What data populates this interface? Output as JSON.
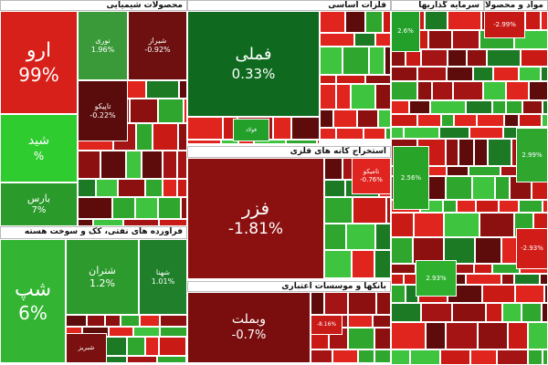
{
  "sectors": [
    {
      "title": "محصولات شیمیایی",
      "tiles": [
        {
          "name": "ارو",
          "change": "99%"
        },
        {
          "name": "نوری",
          "change": "1.96%"
        },
        {
          "name": "شیراز",
          "change": "-0.92%"
        },
        {
          "name": "تاپیکو",
          "change": "-0.22%"
        },
        {
          "name": "شید",
          "change": "%"
        },
        {
          "name": "بارس",
          "change": "7%"
        }
      ]
    },
    {
      "title": "فراورده های نفتی، کک و سوخت هسته",
      "tiles": [
        {
          "name": "شپ",
          "change": "6%"
        },
        {
          "name": "شتران",
          "change": "1.2%"
        },
        {
          "name": "شهنا",
          "change": "1.01%"
        },
        {
          "name": "شبریز"
        }
      ]
    },
    {
      "title": "فلزات اساسی",
      "tiles": [
        {
          "name": "فملی",
          "change": "0.33%"
        },
        {
          "name": "فولاد"
        }
      ]
    },
    {
      "title": "استخراج کانه های فلزی",
      "tiles": [
        {
          "name": "فزر",
          "change": "-1.81%"
        },
        {
          "name": "تامیکو",
          "change": "-0.76%"
        }
      ]
    },
    {
      "title": "بانکها و موسسات اعتباری",
      "tiles": [
        {
          "name": "وبملت",
          "change": "-0.7%"
        },
        {
          "change": "-8.16%"
        }
      ]
    },
    {
      "title": "سرمایه گذاریها",
      "tiles": [
        {
          "change": "2.6%"
        }
      ]
    },
    {
      "title": "مواد و محصولات دارویی",
      "tiles": [
        {
          "change": "-2.99%"
        },
        {
          "change": "2.99%"
        },
        {
          "change": "2.56%"
        },
        {
          "change": "2.93%"
        },
        {
          "change": "-2.93%"
        }
      ]
    }
  ]
}
